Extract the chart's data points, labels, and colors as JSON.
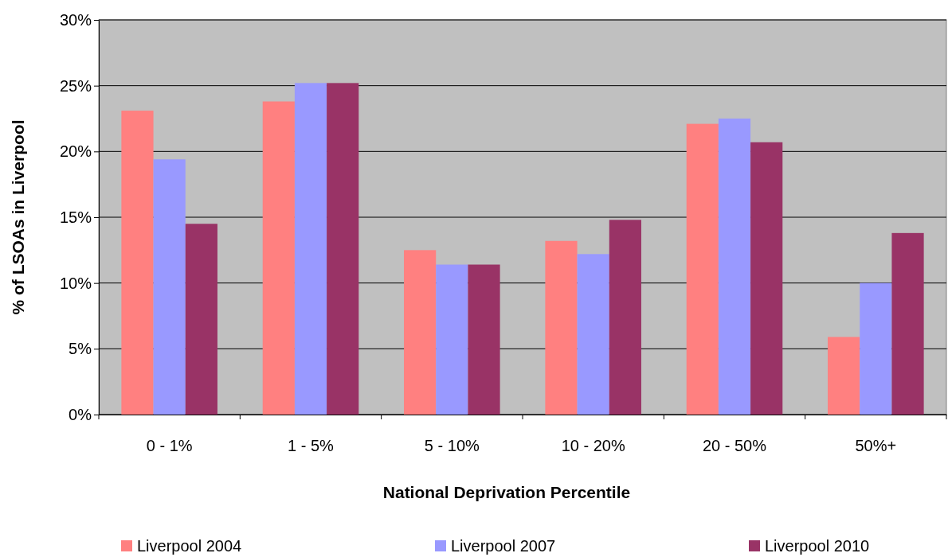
{
  "chart_data": {
    "type": "bar",
    "xlabel": "National Deprivation Percentile",
    "ylabel": "% of LSOAs in Liverpool",
    "categories": [
      "0 - 1%",
      "1 - 5%",
      "5 - 10%",
      "10 - 20%",
      "20 - 50%",
      "50%+"
    ],
    "series": [
      {
        "name": "Liverpool 2004",
        "color": "#ff8080",
        "values": [
          23.1,
          23.8,
          12.5,
          13.2,
          22.1,
          5.9
        ]
      },
      {
        "name": "Liverpool 2007",
        "color": "#9999ff",
        "values": [
          19.4,
          25.2,
          11.4,
          12.2,
          22.5,
          10.0
        ]
      },
      {
        "name": "Liverpool 2010",
        "color": "#993366",
        "values": [
          14.5,
          25.2,
          11.4,
          14.8,
          20.7,
          13.8
        ]
      }
    ],
    "ylim": [
      0,
      30
    ],
    "yticks": [
      {
        "value": 0,
        "label": "0%"
      },
      {
        "value": 5,
        "label": "5%"
      },
      {
        "value": 10,
        "label": "10%"
      },
      {
        "value": 15,
        "label": "15%"
      },
      {
        "value": 20,
        "label": "20%"
      },
      {
        "value": 25,
        "label": "25%"
      },
      {
        "value": 30,
        "label": "30%"
      }
    ],
    "grid": "y",
    "legend": "bottom"
  }
}
